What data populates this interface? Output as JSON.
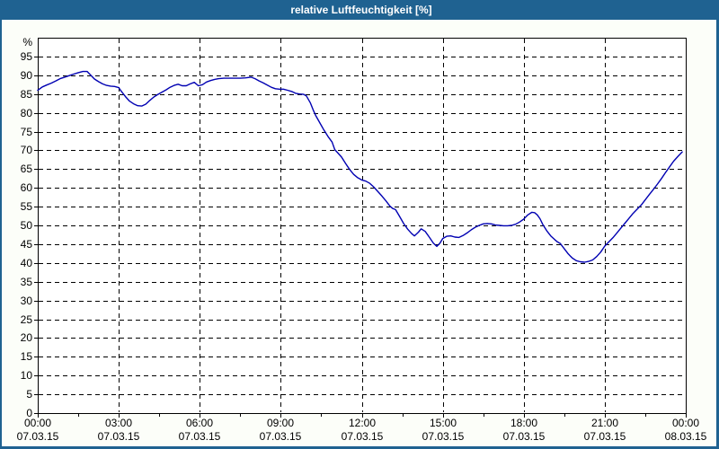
{
  "window": {
    "title": "relative Luftfeuchtigkeit [%]"
  },
  "colors": {
    "titlebar": "#1F6291",
    "frame": "#1F6291",
    "background": "#FCFEF9",
    "plot_background": "#FFFFFF",
    "grid": "#000000",
    "line": "#0000B2",
    "title_text": "#FFFFFF",
    "tick_text": "#000000"
  },
  "chart_data": {
    "type": "line",
    "title": "relative Luftfeuchtigkeit [%]",
    "xlabel": "",
    "ylabel": "%",
    "unit_label": "%",
    "ylim": [
      0,
      100
    ],
    "xlim_hours": [
      0,
      24
    ],
    "grid": "dashed horizontal and vertical, black on white",
    "legend": "none",
    "yticks": [
      {
        "value": 0,
        "label": "0"
      },
      {
        "value": 5,
        "label": "5"
      },
      {
        "value": 10,
        "label": "10"
      },
      {
        "value": 15,
        "label": "15"
      },
      {
        "value": 20,
        "label": "20"
      },
      {
        "value": 25,
        "label": "25"
      },
      {
        "value": 30,
        "label": "30"
      },
      {
        "value": 35,
        "label": "35"
      },
      {
        "value": 40,
        "label": "40"
      },
      {
        "value": 45,
        "label": "45"
      },
      {
        "value": 50,
        "label": "50"
      },
      {
        "value": 55,
        "label": "55"
      },
      {
        "value": 60,
        "label": "60"
      },
      {
        "value": 65,
        "label": "65"
      },
      {
        "value": 70,
        "label": "70"
      },
      {
        "value": 75,
        "label": "75"
      },
      {
        "value": 80,
        "label": "80"
      },
      {
        "value": 85,
        "label": "85"
      },
      {
        "value": 90,
        "label": "90"
      },
      {
        "value": 95,
        "label": "95"
      }
    ],
    "xticks": [
      {
        "hour": 0,
        "time": "00:00",
        "date": "07.03.15"
      },
      {
        "hour": 3,
        "time": "03:00",
        "date": "07.03.15"
      },
      {
        "hour": 6,
        "time": "06:00",
        "date": "07.03.15"
      },
      {
        "hour": 9,
        "time": "09:00",
        "date": "07.03.15"
      },
      {
        "hour": 12,
        "time": "12:00",
        "date": "07.03.15"
      },
      {
        "hour": 15,
        "time": "15:00",
        "date": "07.03.15"
      },
      {
        "hour": 18,
        "time": "18:00",
        "date": "07.03.15"
      },
      {
        "hour": 21,
        "time": "21:00",
        "date": "07.03.15"
      },
      {
        "hour": 24,
        "time": "00:00",
        "date": "08.03.15"
      }
    ],
    "series": [
      {
        "name": "relative Luftfeuchtigkeit [%]",
        "points": [
          [
            0,
            86
          ],
          [
            0.17,
            86.9
          ],
          [
            0.33,
            87.4
          ],
          [
            0.5,
            87.9
          ],
          [
            0.67,
            88.5
          ],
          [
            0.83,
            89.1
          ],
          [
            1,
            89.5
          ],
          [
            1.17,
            89.9
          ],
          [
            1.33,
            90.3
          ],
          [
            1.5,
            90.7
          ],
          [
            1.67,
            91
          ],
          [
            1.83,
            91
          ],
          [
            1.95,
            90.1
          ],
          [
            2.1,
            89
          ],
          [
            2.25,
            88.3
          ],
          [
            2.4,
            87.7
          ],
          [
            2.55,
            87.3
          ],
          [
            2.7,
            87.1
          ],
          [
            2.85,
            87
          ],
          [
            3,
            86.7
          ],
          [
            3.1,
            85.7
          ],
          [
            3.25,
            84.3
          ],
          [
            3.4,
            83.1
          ],
          [
            3.55,
            82.4
          ],
          [
            3.7,
            81.9
          ],
          [
            3.85,
            81.8
          ],
          [
            4,
            82.3
          ],
          [
            4.15,
            83.3
          ],
          [
            4.3,
            84.2
          ],
          [
            4.45,
            84.9
          ],
          [
            4.6,
            85.5
          ],
          [
            4.75,
            86.1
          ],
          [
            4.9,
            86.8
          ],
          [
            5.05,
            87.3
          ],
          [
            5.2,
            87.6
          ],
          [
            5.35,
            87.2
          ],
          [
            5.5,
            87.2
          ],
          [
            5.65,
            87.7
          ],
          [
            5.8,
            88.1
          ],
          [
            5.95,
            87.2
          ],
          [
            6.1,
            87.5
          ],
          [
            6.25,
            88.2
          ],
          [
            6.4,
            88.6
          ],
          [
            6.55,
            88.9
          ],
          [
            6.7,
            89.1
          ],
          [
            6.9,
            89.2
          ],
          [
            7.1,
            89.2
          ],
          [
            7.3,
            89.2
          ],
          [
            7.5,
            89.2
          ],
          [
            7.7,
            89.3
          ],
          [
            7.9,
            89.5
          ],
          [
            8.05,
            89.1
          ],
          [
            8.2,
            88.5
          ],
          [
            8.35,
            88
          ],
          [
            8.5,
            87.4
          ],
          [
            8.65,
            86.8
          ],
          [
            8.8,
            86.4
          ],
          [
            8.95,
            86.3
          ],
          [
            9.1,
            86.3
          ],
          [
            9.25,
            86
          ],
          [
            9.4,
            85.7
          ],
          [
            9.55,
            85.2
          ],
          [
            9.7,
            85
          ],
          [
            9.85,
            84.9
          ],
          [
            9.95,
            84.5
          ],
          [
            10.1,
            82.6
          ],
          [
            10.2,
            80.8
          ],
          [
            10.3,
            79.2
          ],
          [
            10.45,
            77.3
          ],
          [
            10.6,
            75.4
          ],
          [
            10.75,
            73.7
          ],
          [
            10.9,
            72.2
          ],
          [
            11,
            70.2
          ],
          [
            11.1,
            69.4
          ],
          [
            11.25,
            68.2
          ],
          [
            11.4,
            66.5
          ],
          [
            11.55,
            64.9
          ],
          [
            11.7,
            63.6
          ],
          [
            11.85,
            62.7
          ],
          [
            12,
            62.1
          ],
          [
            12.15,
            61.8
          ],
          [
            12.3,
            61.2
          ],
          [
            12.45,
            60.2
          ],
          [
            12.6,
            59
          ],
          [
            12.75,
            57.8
          ],
          [
            12.9,
            56.5
          ],
          [
            13.05,
            55.1
          ],
          [
            13.15,
            54.5
          ],
          [
            13.25,
            54.2
          ],
          [
            13.4,
            52.4
          ],
          [
            13.55,
            50.5
          ],
          [
            13.7,
            49
          ],
          [
            13.85,
            47.8
          ],
          [
            13.95,
            47.2
          ],
          [
            14.1,
            48.2
          ],
          [
            14.2,
            49.1
          ],
          [
            14.35,
            48.4
          ],
          [
            14.5,
            46.9
          ],
          [
            14.65,
            45.3
          ],
          [
            14.78,
            44.4
          ],
          [
            14.9,
            45.3
          ],
          [
            15,
            46.5
          ],
          [
            15.15,
            47.1
          ],
          [
            15.3,
            47.2
          ],
          [
            15.45,
            46.9
          ],
          [
            15.6,
            46.8
          ],
          [
            15.75,
            47.3
          ],
          [
            15.9,
            48
          ],
          [
            16.05,
            48.8
          ],
          [
            16.2,
            49.5
          ],
          [
            16.35,
            50
          ],
          [
            16.5,
            50.4
          ],
          [
            16.65,
            50.5
          ],
          [
            16.8,
            50.4
          ],
          [
            16.95,
            50.1
          ],
          [
            17.1,
            50
          ],
          [
            17.25,
            49.9
          ],
          [
            17.4,
            49.9
          ],
          [
            17.55,
            50
          ],
          [
            17.7,
            50.3
          ],
          [
            17.85,
            50.9
          ],
          [
            18,
            51.7
          ],
          [
            18.15,
            52.8
          ],
          [
            18.3,
            53.5
          ],
          [
            18.4,
            53.4
          ],
          [
            18.5,
            52.8
          ],
          [
            18.6,
            51.8
          ],
          [
            18.7,
            50.3
          ],
          [
            18.85,
            48.6
          ],
          [
            19,
            47.2
          ],
          [
            19.15,
            46.2
          ],
          [
            19.25,
            45.6
          ],
          [
            19.35,
            45.2
          ],
          [
            19.5,
            43.8
          ],
          [
            19.65,
            42.4
          ],
          [
            19.8,
            41.3
          ],
          [
            19.95,
            40.6
          ],
          [
            20.1,
            40.3
          ],
          [
            20.25,
            40.2
          ],
          [
            20.4,
            40.4
          ],
          [
            20.55,
            40.8
          ],
          [
            20.7,
            41.7
          ],
          [
            20.85,
            42.9
          ],
          [
            21,
            44.5
          ],
          [
            21.15,
            45.6
          ],
          [
            21.3,
            46.7
          ],
          [
            21.45,
            48
          ],
          [
            21.6,
            49.3
          ],
          [
            21.75,
            50.6
          ],
          [
            21.9,
            51.9
          ],
          [
            22.05,
            53.2
          ],
          [
            22.2,
            54.3
          ],
          [
            22.35,
            55.4
          ],
          [
            22.5,
            56.8
          ],
          [
            22.65,
            58.2
          ],
          [
            22.8,
            59.6
          ],
          [
            22.95,
            61
          ],
          [
            23.1,
            62.5
          ],
          [
            23.25,
            64.1
          ],
          [
            23.4,
            65.6
          ],
          [
            23.55,
            67.1
          ],
          [
            23.7,
            68.3
          ],
          [
            23.87,
            69.6
          ]
        ]
      }
    ]
  }
}
